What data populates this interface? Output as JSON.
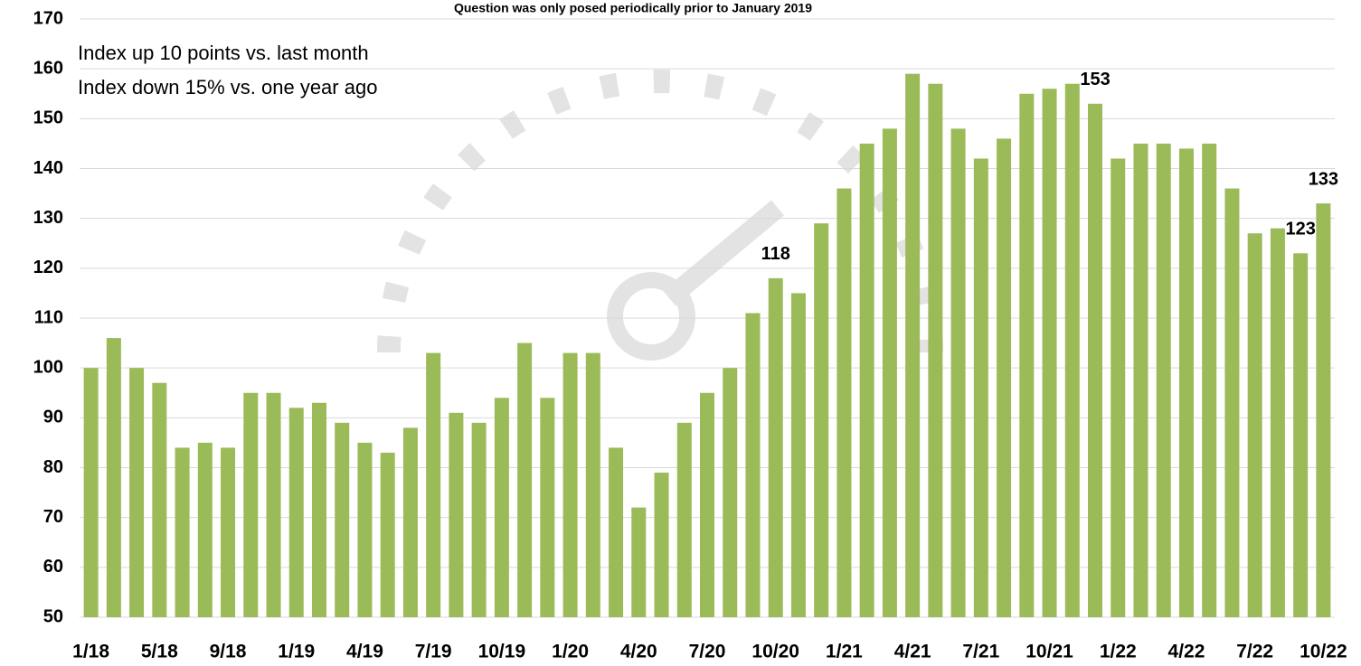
{
  "chart_data": {
    "type": "bar",
    "title": "Question was only posed periodically prior to January 2019",
    "annotations": [
      "Index up 10 points vs. last month",
      "Index down 15% vs. one year ago"
    ],
    "categories": [
      "1/18",
      null,
      null,
      "5/18",
      null,
      null,
      "9/18",
      null,
      null,
      "1/19",
      null,
      null,
      "4/19",
      null,
      null,
      "7/19",
      null,
      null,
      "10/19",
      null,
      null,
      "1/20",
      null,
      null,
      "4/20",
      null,
      null,
      "7/20",
      null,
      null,
      "10/20",
      null,
      null,
      "1/21",
      null,
      null,
      "4/21",
      null,
      null,
      "7/21",
      null,
      null,
      "10/21",
      null,
      null,
      "1/22",
      null,
      null,
      "4/22",
      null,
      null,
      "7/22",
      null,
      null,
      "10/22"
    ],
    "values": [
      100,
      106,
      100,
      97,
      84,
      85,
      84,
      95,
      95,
      92,
      93,
      89,
      85,
      83,
      88,
      103,
      91,
      89,
      94,
      105,
      94,
      103,
      103,
      84,
      72,
      79,
      89,
      95,
      100,
      111,
      118,
      115,
      129,
      136,
      145,
      148,
      159,
      157,
      148,
      142,
      146,
      155,
      156,
      157,
      153,
      142,
      145,
      145,
      144,
      145,
      136,
      127,
      128,
      123,
      133
    ],
    "value_labels": [
      null,
      null,
      null,
      null,
      null,
      null,
      null,
      null,
      null,
      null,
      null,
      null,
      null,
      null,
      null,
      null,
      null,
      null,
      null,
      null,
      null,
      null,
      null,
      null,
      null,
      null,
      null,
      null,
      null,
      null,
      "118",
      null,
      null,
      null,
      null,
      null,
      null,
      null,
      null,
      null,
      null,
      null,
      null,
      null,
      "153",
      null,
      null,
      null,
      null,
      null,
      null,
      null,
      null,
      "123",
      "133"
    ],
    "color": "#9bbb59",
    "ylim": [
      50,
      170
    ],
    "yticks": [
      50,
      60,
      70,
      80,
      90,
      100,
      110,
      120,
      130,
      140,
      150,
      160,
      170
    ],
    "grid": true
  }
}
